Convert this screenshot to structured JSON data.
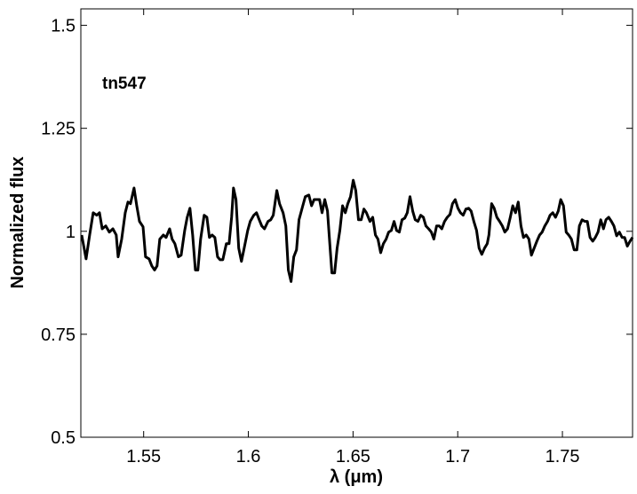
{
  "chart_data": {
    "type": "line",
    "annotation": "tn547",
    "xlabel": "λ (μm)",
    "ylabel": "Normalized flux",
    "color": "#000000",
    "xlim": [
      1.52,
      1.7835
    ],
    "ylim": [
      0.5,
      1.54
    ],
    "xticks": [
      1.55,
      1.6,
      1.65,
      1.7,
      1.75
    ],
    "yticks": [
      0.5,
      0.75,
      1,
      1.25,
      1.5
    ],
    "x": [
      1.5204,
      1.5225,
      1.5242,
      1.5259,
      1.5276,
      1.5289,
      1.5302,
      1.5319,
      1.5336,
      1.5353,
      1.5369,
      1.5378,
      1.5395,
      1.5412,
      1.5425,
      1.5437,
      1.5454,
      1.5467,
      1.548,
      1.5497,
      1.5509,
      1.5526,
      1.5539,
      1.5552,
      1.5564,
      1.5577,
      1.5594,
      1.5607,
      1.5624,
      1.5636,
      1.5649,
      1.5666,
      1.5679,
      1.5696,
      1.5708,
      1.5721,
      1.5734,
      1.5747,
      1.5759,
      1.5772,
      1.5789,
      1.5802,
      1.5814,
      1.5827,
      1.584,
      1.5853,
      1.5865,
      1.5878,
      1.5895,
      1.5908,
      1.592,
      1.5929,
      1.5941,
      1.5954,
      1.5967,
      1.598,
      1.5997,
      1.6009,
      1.6026,
      1.6039,
      1.6052,
      1.6064,
      1.6077,
      1.6094,
      1.6107,
      1.6119,
      1.6136,
      1.6149,
      1.6166,
      1.6179,
      1.6191,
      1.6204,
      1.6217,
      1.623,
      1.6242,
      1.6259,
      1.6272,
      1.6289,
      1.6302,
      1.6314,
      1.6327,
      1.634,
      1.6352,
      1.6365,
      1.6378,
      1.6386,
      1.6399,
      1.6412,
      1.6424,
      1.6437,
      1.645,
      1.6463,
      1.6475,
      1.6488,
      1.6501,
      1.6513,
      1.6526,
      1.6539,
      1.6552,
      1.6564,
      1.6581,
      1.6594,
      1.6607,
      1.6619,
      1.6632,
      1.6645,
      1.6658,
      1.667,
      1.6683,
      1.6696,
      1.6708,
      1.6721,
      1.6734,
      1.6747,
      1.6759,
      1.6772,
      1.6785,
      1.6797,
      1.681,
      1.6823,
      1.6836,
      1.6848,
      1.6861,
      1.6874,
      1.6886,
      1.6899,
      1.6912,
      1.6924,
      1.6937,
      1.695,
      1.6963,
      1.6975,
      1.6988,
      1.7001,
      1.7013,
      1.7026,
      1.7039,
      1.7052,
      1.7064,
      1.7077,
      1.709,
      1.7102,
      1.7115,
      1.7128,
      1.7141,
      1.7149,
      1.7162,
      1.7174,
      1.7187,
      1.72,
      1.7213,
      1.7225,
      1.7238,
      1.7251,
      1.7263,
      1.7276,
      1.7289,
      1.7302,
      1.7314,
      1.7327,
      1.734,
      1.7352,
      1.7365,
      1.7378,
      1.7391,
      1.7403,
      1.7416,
      1.7429,
      1.7441,
      1.7454,
      1.7467,
      1.748,
      1.7492,
      1.7505,
      1.7518,
      1.753,
      1.7543,
      1.7556,
      1.7569,
      1.7581,
      1.7594,
      1.7607,
      1.7619,
      1.7632,
      1.7645,
      1.7657,
      1.767,
      1.7683,
      1.7696,
      1.7708,
      1.7721,
      1.7734,
      1.7746,
      1.7759,
      1.7772,
      1.7785,
      1.7797,
      1.781,
      1.7823,
      1.7835
    ],
    "values": [
      0.991,
      0.933,
      0.991,
      1.045,
      1.039,
      1.045,
      1.006,
      1.013,
      0.998,
      1.006,
      0.991,
      0.938,
      0.981,
      1.045,
      1.071,
      1.067,
      1.105,
      1.062,
      1.024,
      1.011,
      0.938,
      0.933,
      0.916,
      0.906,
      0.916,
      0.981,
      0.991,
      0.985,
      1.006,
      0.981,
      0.97,
      0.938,
      0.942,
      1.002,
      1.034,
      1.056,
      0.991,
      0.906,
      0.906,
      0.981,
      1.039,
      1.034,
      0.985,
      0.991,
      0.985,
      0.938,
      0.931,
      0.931,
      0.97,
      0.97,
      1.034,
      1.105,
      1.077,
      0.959,
      0.927,
      0.959,
      1.002,
      1.024,
      1.039,
      1.045,
      1.028,
      1.013,
      1.006,
      1.024,
      1.028,
      1.039,
      1.099,
      1.067,
      1.045,
      1.013,
      0.906,
      0.878,
      0.938,
      0.955,
      1.028,
      1.06,
      1.084,
      1.088,
      1.062,
      1.077,
      1.077,
      1.077,
      1.045,
      1.077,
      1.049,
      0.991,
      0.899,
      0.899,
      0.959,
      1.002,
      1.062,
      1.045,
      1.067,
      1.084,
      1.124,
      1.099,
      1.028,
      1.028,
      1.054,
      1.045,
      1.024,
      1.034,
      0.991,
      0.981,
      0.948,
      0.97,
      0.981,
      0.998,
      1.002,
      1.024,
      1.002,
      0.998,
      1.028,
      1.032,
      1.045,
      1.084,
      1.049,
      1.028,
      1.024,
      1.039,
      1.034,
      1.013,
      1.006,
      0.998,
      0.981,
      1.013,
      1.013,
      1.006,
      1.024,
      1.034,
      1.041,
      1.067,
      1.077,
      1.056,
      1.045,
      1.039,
      1.054,
      1.056,
      1.049,
      1.024,
      1.002,
      0.959,
      0.944,
      0.959,
      0.97,
      0.991,
      1.067,
      1.056,
      1.034,
      1.024,
      1.013,
      0.998,
      1.006,
      1.034,
      1.062,
      1.045,
      1.071,
      1.013,
      0.985,
      0.991,
      0.981,
      0.942,
      0.959,
      0.976,
      0.991,
      0.998,
      1.013,
      1.024,
      1.039,
      1.045,
      1.034,
      1.049,
      1.077,
      1.062,
      0.998,
      0.991,
      0.981,
      0.955,
      0.955,
      1.013,
      1.028,
      1.024,
      1.024,
      0.985,
      0.976,
      0.985,
      0.998,
      1.028,
      1.006,
      1.028,
      1.034,
      1.024,
      1.013,
      0.989,
      0.998,
      0.985,
      0.985,
      0.964,
      0.976,
      0.985
    ]
  }
}
